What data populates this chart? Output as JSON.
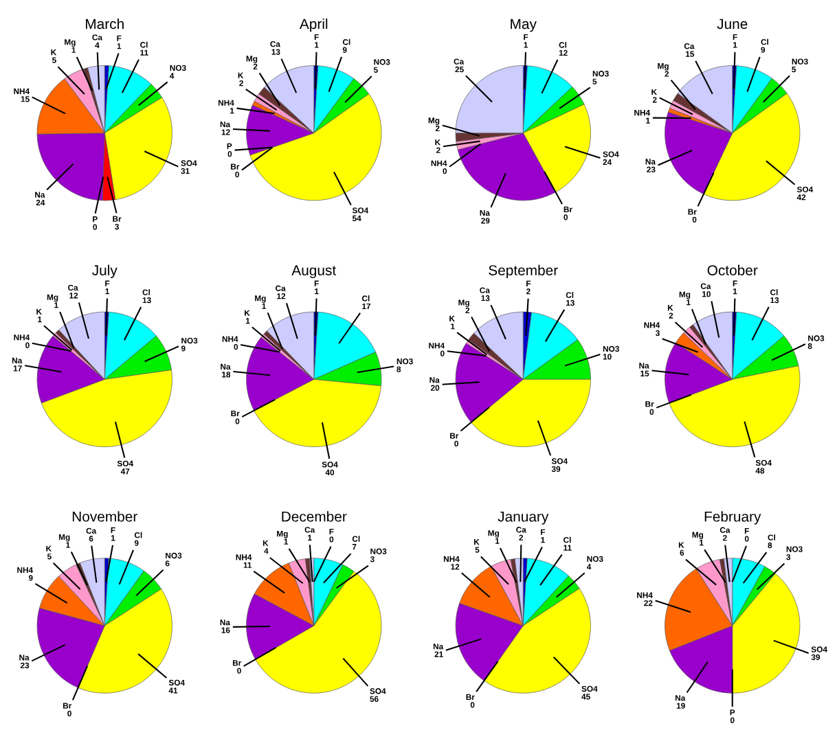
{
  "chart_data": [
    {
      "type": "pie",
      "title": "March",
      "categories": [
        "F",
        "Cl",
        "NO3",
        "SO4",
        "Br",
        "P",
        "Na",
        "NH4",
        "K",
        "Mg",
        "Ca"
      ],
      "values": [
        1,
        11,
        4,
        31,
        3,
        0,
        24,
        15,
        5,
        1,
        4
      ],
      "value_labels": [
        "1",
        "11",
        "4",
        "31",
        "3",
        "0",
        "24",
        "15",
        "5",
        "1",
        "4"
      ],
      "colors": [
        "#0000cc",
        "#00ffff",
        "#00ee00",
        "#ffff00",
        "#ff0000",
        "#808080",
        "#9900cc",
        "#ff6600",
        "#ff99cc",
        "#663333",
        "#ccccff"
      ]
    },
    {
      "type": "pie",
      "title": "April",
      "categories": [
        "F",
        "Cl",
        "NO3",
        "SO4",
        "Br",
        "P",
        "Na",
        "NH4",
        "K",
        "Mg",
        "Ca"
      ],
      "values": [
        1,
        9,
        5,
        54,
        0,
        0,
        12,
        1,
        2,
        2,
        13
      ],
      "value_labels": [
        "1",
        "9",
        "5",
        "54",
        "0",
        "0",
        "12",
        "1",
        "2",
        "2",
        "13"
      ],
      "colors": [
        "#0000cc",
        "#00ffff",
        "#00ee00",
        "#ffff00",
        "#ff0000",
        "#808080",
        "#9900cc",
        "#ff6600",
        "#ff99cc",
        "#663333",
        "#ccccff"
      ]
    },
    {
      "type": "pie",
      "title": "May",
      "categories": [
        "F",
        "Cl",
        "NO3",
        "SO4",
        "Br",
        "Na",
        "NH4",
        "K",
        "Mg",
        "Ca"
      ],
      "values": [
        1,
        12,
        5,
        24,
        0,
        29,
        0,
        2,
        2,
        25
      ],
      "value_labels": [
        "1",
        "12",
        "5",
        "24",
        "0",
        "29",
        "0",
        "2",
        "2",
        "25"
      ],
      "colors": [
        "#0000cc",
        "#00ffff",
        "#00ee00",
        "#ffff00",
        "#ff0000",
        "#9900cc",
        "#ff6600",
        "#ff99cc",
        "#663333",
        "#ccccff"
      ]
    },
    {
      "type": "pie",
      "title": "June",
      "categories": [
        "F",
        "Cl",
        "NO3",
        "SO4",
        "Br",
        "Na",
        "NH4",
        "K",
        "Mg",
        "Ca"
      ],
      "values": [
        1,
        9,
        5,
        42,
        0,
        23,
        1,
        2,
        2,
        15
      ],
      "value_labels": [
        "1",
        "9",
        "5",
        "42",
        "0",
        "23",
        "1",
        "2",
        "2",
        "15"
      ],
      "colors": [
        "#0000cc",
        "#00ffff",
        "#00ee00",
        "#ffff00",
        "#ff0000",
        "#9900cc",
        "#ff6600",
        "#ff99cc",
        "#663333",
        "#ccccff"
      ]
    },
    {
      "type": "pie",
      "title": "July",
      "categories": [
        "F",
        "Cl",
        "NO3",
        "SO4",
        "Na",
        "NH4",
        "K",
        "Mg",
        "Ca"
      ],
      "values": [
        1,
        13,
        9,
        47,
        17,
        0,
        1,
        1,
        12
      ],
      "value_labels": [
        "1",
        "13",
        "9",
        "47",
        "17",
        "0",
        "1",
        "1",
        "12"
      ],
      "colors": [
        "#0000cc",
        "#00ffff",
        "#00ee00",
        "#ffff00",
        "#9900cc",
        "#ff6600",
        "#ff99cc",
        "#663333",
        "#ccccff"
      ]
    },
    {
      "type": "pie",
      "title": "August",
      "categories": [
        "F",
        "Cl",
        "NO3",
        "SO4",
        "Br",
        "Na",
        "NH4",
        "K",
        "Mg",
        "Ca"
      ],
      "values": [
        1,
        17,
        8,
        40,
        0,
        18,
        0,
        1,
        1,
        12
      ],
      "value_labels": [
        "1",
        "17",
        "8",
        "40",
        "0",
        "18",
        "0",
        "1",
        "1",
        "12"
      ],
      "colors": [
        "#0000cc",
        "#00ffff",
        "#00ee00",
        "#ffff00",
        "#ff0000",
        "#9900cc",
        "#ff6600",
        "#ff99cc",
        "#663333",
        "#ccccff"
      ]
    },
    {
      "type": "pie",
      "title": "September",
      "categories": [
        "F",
        "Cl",
        "NO3",
        "SO4",
        "Br",
        "Na",
        "NH4",
        "K",
        "Mg",
        "Ca"
      ],
      "values": [
        2,
        13,
        10,
        39,
        0,
        20,
        0,
        1,
        2,
        13
      ],
      "value_labels": [
        "2",
        "13",
        "10",
        "39",
        "0",
        "20",
        "0",
        "1",
        "2",
        "13"
      ],
      "colors": [
        "#0000cc",
        "#00ffff",
        "#00ee00",
        "#ffff00",
        "#ff0000",
        "#9900cc",
        "#ff6600",
        "#ff99cc",
        "#663333",
        "#ccccff"
      ]
    },
    {
      "type": "pie",
      "title": "October",
      "categories": [
        "F",
        "Cl",
        "NO3",
        "SO4",
        "Br",
        "Na",
        "NH4",
        "K",
        "Mg",
        "Ca"
      ],
      "values": [
        1,
        13,
        8,
        48,
        0,
        15,
        3,
        2,
        1,
        10
      ],
      "value_labels": [
        "1",
        "13",
        "8",
        "48",
        "0",
        "15",
        "3",
        "2",
        "1",
        "10"
      ],
      "colors": [
        "#0000cc",
        "#00ffff",
        "#00ee00",
        "#ffff00",
        "#ff0000",
        "#9900cc",
        "#ff6600",
        "#ff99cc",
        "#663333",
        "#ccccff"
      ]
    },
    {
      "type": "pie",
      "title": "November",
      "categories": [
        "F",
        "Cl",
        "NO3",
        "SO4",
        "Br",
        "Na",
        "NH4",
        "K",
        "Mg",
        "Ca"
      ],
      "values": [
        1,
        9,
        6,
        41,
        0,
        23,
        9,
        5,
        1,
        6
      ],
      "value_labels": [
        "1",
        "9",
        "6",
        "41",
        "0",
        "23",
        "9",
        "5",
        "1",
        "6"
      ],
      "colors": [
        "#0000cc",
        "#00ffff",
        "#00ee00",
        "#ffff00",
        "#ff0000",
        "#9900cc",
        "#ff6600",
        "#ff99cc",
        "#663333",
        "#ccccff"
      ]
    },
    {
      "type": "pie",
      "title": "December",
      "categories": [
        "F",
        "Cl",
        "NO3",
        "SO4",
        "Br",
        "Na",
        "NH4",
        "K",
        "Mg",
        "Ca"
      ],
      "values": [
        0,
        7,
        3,
        56,
        0,
        16,
        11,
        4,
        1,
        1
      ],
      "value_labels": [
        "0",
        "7",
        "3",
        "56",
        "0",
        "16",
        "11",
        "4",
        "1",
        "1"
      ],
      "colors": [
        "#0000cc",
        "#00ffff",
        "#00ee00",
        "#ffff00",
        "#ff0000",
        "#9900cc",
        "#ff6600",
        "#ff99cc",
        "#663333",
        "#ccccff"
      ]
    },
    {
      "type": "pie",
      "title": "January",
      "categories": [
        "F",
        "Cl",
        "NO3",
        "SO4",
        "Br",
        "Na",
        "NH4",
        "K",
        "Mg",
        "Ca"
      ],
      "values": [
        1,
        11,
        4,
        45,
        0,
        21,
        12,
        5,
        1,
        2
      ],
      "value_labels": [
        "1",
        "11",
        "4",
        "45",
        "0",
        "21",
        "12",
        "5",
        "1",
        "2"
      ],
      "colors": [
        "#0000cc",
        "#00ffff",
        "#00ee00",
        "#ffff00",
        "#ff0000",
        "#9900cc",
        "#ff6600",
        "#ff99cc",
        "#663333",
        "#ccccff"
      ]
    },
    {
      "type": "pie",
      "title": "February",
      "categories": [
        "F",
        "Cl",
        "NO3",
        "SO4",
        "P",
        "Na",
        "NH4",
        "K",
        "Mg",
        "Ca"
      ],
      "values": [
        0,
        8,
        3,
        39,
        0,
        19,
        22,
        6,
        1,
        2
      ],
      "value_labels": [
        "0",
        "8",
        "3",
        "39",
        "0",
        "19",
        "22",
        "6",
        "1",
        "2"
      ],
      "colors": [
        "#0000cc",
        "#00ffff",
        "#00ee00",
        "#ffff00",
        "#808080",
        "#9900cc",
        "#ff6600",
        "#ff99cc",
        "#663333",
        "#ccccff"
      ]
    }
  ]
}
